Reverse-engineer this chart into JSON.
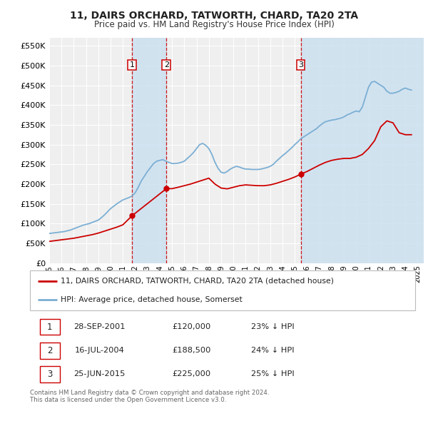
{
  "title": "11, DAIRS ORCHARD, TATWORTH, CHARD, TA20 2TA",
  "subtitle": "Price paid vs. HM Land Registry's House Price Index (HPI)",
  "ylim": [
    0,
    570000
  ],
  "yticks": [
    0,
    50000,
    100000,
    150000,
    200000,
    250000,
    300000,
    350000,
    400000,
    450000,
    500000,
    550000
  ],
  "ytick_labels": [
    "£0",
    "£50K",
    "£100K",
    "£150K",
    "£200K",
    "£250K",
    "£300K",
    "£350K",
    "£400K",
    "£450K",
    "£500K",
    "£550K"
  ],
  "xlim_start": 1995.0,
  "xlim_end": 2025.5,
  "background_color": "#ffffff",
  "plot_bg_color": "#efefef",
  "grid_color": "#ffffff",
  "sale_color": "#cc0000",
  "hpi_color": "#7bafd4",
  "shade_color": "#cce0f0",
  "transactions": [
    {
      "num": 1,
      "date": "28-SEP-2001",
      "year": 2001.75,
      "price": 120000,
      "pct": "23%",
      "dir": "↓"
    },
    {
      "num": 2,
      "date": "16-JUL-2004",
      "year": 2004.54,
      "price": 188500,
      "pct": "24%",
      "dir": "↓"
    },
    {
      "num": 3,
      "date": "25-JUN-2015",
      "year": 2015.48,
      "price": 225000,
      "pct": "25%",
      "dir": "↓"
    }
  ],
  "legend_label_sale": "11, DAIRS ORCHARD, TATWORTH, CHARD, TA20 2TA (detached house)",
  "legend_label_hpi": "HPI: Average price, detached house, Somerset",
  "footnote": "Contains HM Land Registry data © Crown copyright and database right 2024.\nThis data is licensed under the Open Government Licence v3.0.",
  "hpi_data_x": [
    1995.0,
    1995.25,
    1995.5,
    1995.75,
    1996.0,
    1996.25,
    1996.5,
    1996.75,
    1997.0,
    1997.25,
    1997.5,
    1997.75,
    1998.0,
    1998.25,
    1998.5,
    1998.75,
    1999.0,
    1999.25,
    1999.5,
    1999.75,
    2000.0,
    2000.25,
    2000.5,
    2000.75,
    2001.0,
    2001.25,
    2001.5,
    2001.75,
    2002.0,
    2002.25,
    2002.5,
    2002.75,
    2003.0,
    2003.25,
    2003.5,
    2003.75,
    2004.0,
    2004.25,
    2004.5,
    2004.75,
    2005.0,
    2005.25,
    2005.5,
    2005.75,
    2006.0,
    2006.25,
    2006.5,
    2006.75,
    2007.0,
    2007.25,
    2007.5,
    2007.75,
    2008.0,
    2008.25,
    2008.5,
    2008.75,
    2009.0,
    2009.25,
    2009.5,
    2009.75,
    2010.0,
    2010.25,
    2010.5,
    2010.75,
    2011.0,
    2011.25,
    2011.5,
    2011.75,
    2012.0,
    2012.25,
    2012.5,
    2012.75,
    2013.0,
    2013.25,
    2013.5,
    2013.75,
    2014.0,
    2014.25,
    2014.5,
    2014.75,
    2015.0,
    2015.25,
    2015.5,
    2015.75,
    2016.0,
    2016.25,
    2016.5,
    2016.75,
    2017.0,
    2017.25,
    2017.5,
    2017.75,
    2018.0,
    2018.25,
    2018.5,
    2018.75,
    2019.0,
    2019.25,
    2019.5,
    2019.75,
    2020.0,
    2020.25,
    2020.5,
    2020.75,
    2021.0,
    2021.25,
    2021.5,
    2021.75,
    2022.0,
    2022.25,
    2022.5,
    2022.75,
    2023.0,
    2023.25,
    2023.5,
    2023.75,
    2024.0,
    2024.25,
    2024.5
  ],
  "hpi_data_y": [
    75000,
    76000,
    77000,
    78000,
    79000,
    80000,
    82000,
    84000,
    87000,
    90000,
    93000,
    96000,
    98000,
    100000,
    103000,
    106000,
    109000,
    115000,
    122000,
    130000,
    138000,
    144000,
    150000,
    155000,
    160000,
    163000,
    166000,
    170000,
    178000,
    192000,
    208000,
    220000,
    232000,
    242000,
    252000,
    258000,
    260000,
    262000,
    258000,
    255000,
    252000,
    252000,
    253000,
    255000,
    258000,
    265000,
    272000,
    280000,
    290000,
    300000,
    303000,
    298000,
    290000,
    275000,
    255000,
    240000,
    230000,
    228000,
    232000,
    238000,
    242000,
    245000,
    243000,
    240000,
    238000,
    238000,
    237000,
    237000,
    237000,
    238000,
    240000,
    242000,
    245000,
    250000,
    258000,
    265000,
    272000,
    278000,
    285000,
    292000,
    300000,
    307000,
    315000,
    320000,
    325000,
    330000,
    335000,
    340000,
    347000,
    353000,
    358000,
    360000,
    362000,
    363000,
    365000,
    367000,
    370000,
    375000,
    378000,
    382000,
    385000,
    383000,
    395000,
    420000,
    445000,
    458000,
    460000,
    455000,
    450000,
    445000,
    435000,
    430000,
    430000,
    432000,
    435000,
    440000,
    443000,
    440000,
    438000
  ],
  "sale_data_x": [
    1995.0,
    1995.5,
    1996.0,
    1996.5,
    1997.0,
    1997.5,
    1998.0,
    1998.5,
    1999.0,
    1999.5,
    2000.0,
    2000.5,
    2001.0,
    2001.75,
    2004.54,
    2005.0,
    2005.5,
    2006.0,
    2006.5,
    2007.0,
    2007.5,
    2008.0,
    2008.5,
    2009.0,
    2009.5,
    2010.0,
    2010.5,
    2011.0,
    2011.5,
    2012.0,
    2012.5,
    2013.0,
    2013.5,
    2014.0,
    2014.5,
    2015.0,
    2015.48,
    2016.0,
    2016.5,
    2017.0,
    2017.5,
    2018.0,
    2018.5,
    2019.0,
    2019.5,
    2020.0,
    2020.5,
    2021.0,
    2021.5,
    2022.0,
    2022.5,
    2023.0,
    2023.5,
    2024.0,
    2024.5
  ],
  "sale_data_y": [
    55000,
    57000,
    59000,
    61000,
    63000,
    66000,
    69000,
    72000,
    76000,
    81000,
    86000,
    91000,
    97000,
    120000,
    188500,
    188500,
    192000,
    196000,
    200000,
    205000,
    210000,
    215000,
    200000,
    190000,
    188000,
    192000,
    196000,
    198000,
    197000,
    196000,
    196000,
    198000,
    202000,
    207000,
    212000,
    218000,
    225000,
    232000,
    240000,
    248000,
    255000,
    260000,
    263000,
    265000,
    265000,
    268000,
    275000,
    290000,
    310000,
    345000,
    360000,
    355000,
    330000,
    325000,
    325000
  ],
  "title_fontsize": 10,
  "subtitle_fontsize": 8.5,
  "tick_fontsize": 7,
  "ytick_fontsize": 8
}
